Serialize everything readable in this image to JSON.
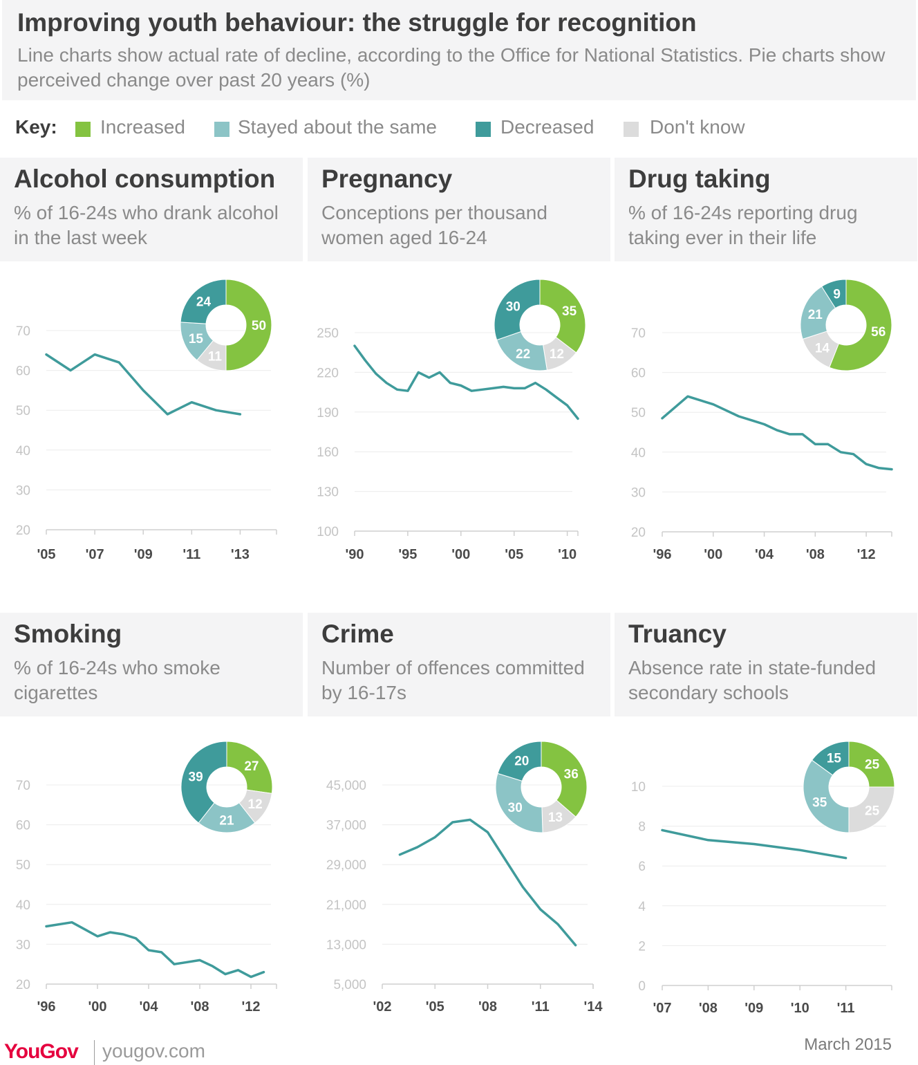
{
  "header": {
    "title": "Improving youth behaviour: the struggle for recognition",
    "subtitle": "Line charts show actual rate of decline, according to the Office for National Statistics. Pie charts show perceived change over past 20 years (%)"
  },
  "key": {
    "label": "Key:",
    "items": [
      {
        "label": "Increased",
        "color": "#84c341"
      },
      {
        "label": "Stayed about the same",
        "color": "#8cc4c6"
      },
      {
        "label": "Decreased",
        "color": "#3f9b9b"
      },
      {
        "label": "Don't know",
        "color": "#dcdcdc"
      }
    ]
  },
  "colors": {
    "line": "#3f9b9b",
    "axis": "#cfcfcf",
    "grid": "#ececec"
  },
  "footer": {
    "logo": "YouGov",
    "url": "yougov.com",
    "date": "March 2015"
  },
  "chart_data": [
    {
      "type": "line",
      "title": "Alcohol consumption",
      "subtitle": "% of 16-24s who drank alcohol in the last week",
      "yticks": [
        "20",
        "30",
        "40",
        "50",
        "60",
        "70"
      ],
      "ylim": [
        20,
        70
      ],
      "xlim": [
        2005,
        2014.5
      ],
      "xtick_values": [
        2005,
        2007,
        2009,
        2011,
        2013
      ],
      "xtick_labels": [
        "'05",
        "'07",
        "'09",
        "'11",
        "'13"
      ],
      "x": [
        2005,
        2006,
        2007,
        2008,
        2009,
        2010,
        2011,
        2012,
        2013
      ],
      "y": [
        64,
        60,
        64,
        62,
        55,
        49,
        52,
        50,
        49
      ],
      "perception": {
        "labels": [
          "50",
          "11",
          "15",
          "24"
        ],
        "values": [
          50,
          11,
          15,
          24
        ],
        "colors": [
          "#84c341",
          "#dcdcdc",
          "#8cc4c6",
          "#3f9b9b"
        ]
      }
    },
    {
      "type": "line",
      "title": "Pregnancy",
      "subtitle": "Conceptions per thousand women aged 16-24",
      "yticks": [
        "100",
        "130",
        "160",
        "190",
        "220",
        "250"
      ],
      "ylim": [
        100,
        250
      ],
      "xlim": [
        1990,
        2011
      ],
      "xtick_values": [
        1990,
        1995,
        2000,
        2005,
        2010
      ],
      "xtick_labels": [
        "'90",
        "'95",
        "'00",
        "'05",
        "'10"
      ],
      "x": [
        1990,
        1991,
        1992,
        1993,
        1994,
        1995,
        1996,
        1997,
        1998,
        1999,
        2000,
        2001,
        2002,
        2003,
        2004,
        2005,
        2006,
        2007,
        2008,
        2009,
        2010,
        2011
      ],
      "y": [
        240,
        229,
        219,
        212,
        207,
        206,
        220,
        216,
        220,
        212,
        210,
        206,
        207,
        208,
        209,
        208,
        208,
        212,
        207,
        201,
        195,
        185
      ],
      "perception": {
        "labels": [
          "35",
          "12",
          "22",
          "30"
        ],
        "values": [
          35,
          12,
          22,
          30
        ],
        "colors": [
          "#84c341",
          "#dcdcdc",
          "#8cc4c6",
          "#3f9b9b"
        ]
      }
    },
    {
      "type": "line",
      "title": "Drug taking",
      "subtitle": "% of 16-24s reporting drug taking ever in their life",
      "yticks": [
        "20",
        "30",
        "40",
        "50",
        "60",
        "70"
      ],
      "ylim": [
        20,
        70
      ],
      "xlim": [
        1996,
        2014
      ],
      "xtick_values": [
        1996,
        2000,
        2004,
        2008,
        2012
      ],
      "xtick_labels": [
        "'96",
        "'00",
        "'04",
        "'08",
        "'12"
      ],
      "x": [
        1996,
        1998,
        2000,
        2001,
        2002,
        2003,
        2004,
        2005,
        2006,
        2007,
        2008,
        2009,
        2010,
        2011,
        2012,
        2013,
        2014
      ],
      "y": [
        48.5,
        54,
        52,
        50.5,
        49,
        48,
        47,
        45.5,
        44.5,
        44.5,
        42,
        42,
        40,
        39.5,
        37,
        36,
        35.7
      ],
      "perception": {
        "labels": [
          "56",
          "14",
          "21",
          "9"
        ],
        "values": [
          56,
          14,
          21,
          9
        ],
        "colors": [
          "#84c341",
          "#dcdcdc",
          "#8cc4c6",
          "#3f9b9b"
        ]
      }
    },
    {
      "type": "line",
      "title": "Smoking",
      "subtitle": "% of 16-24s who smoke cigarettes",
      "yticks": [
        "20",
        "30",
        "40",
        "50",
        "60",
        "70"
      ],
      "ylim": [
        20,
        70
      ],
      "xlim": [
        1996,
        2014
      ],
      "xtick_values": [
        1996,
        2000,
        2004,
        2008,
        2012
      ],
      "xtick_labels": [
        "'96",
        "'00",
        "'04",
        "'08",
        "'12"
      ],
      "x": [
        1996,
        1998,
        2000,
        2001,
        2002,
        2003,
        2004,
        2005,
        2006,
        2007,
        2008,
        2009,
        2010,
        2011,
        2012,
        2013
      ],
      "y": [
        34.5,
        35.5,
        32,
        33,
        32.5,
        31.5,
        28.5,
        28,
        25,
        25.5,
        26,
        24.5,
        22.5,
        23.5,
        21.8,
        23
      ],
      "perception": {
        "labels": [
          "27",
          "12",
          "21",
          "39"
        ],
        "values": [
          27,
          12,
          21,
          39
        ],
        "colors": [
          "#84c341",
          "#dcdcdc",
          "#8cc4c6",
          "#3f9b9b"
        ]
      }
    },
    {
      "type": "line",
      "title": "Crime",
      "subtitle": "Number of offences committed by 16-17s",
      "yticks": [
        "5,000",
        "13,000",
        "21,000",
        "29,000",
        "37,000",
        "45,000"
      ],
      "ylim": [
        5000,
        45000
      ],
      "xlim": [
        2002,
        2014
      ],
      "xtick_values": [
        2002,
        2005,
        2008,
        2011,
        2014
      ],
      "xtick_labels": [
        "'02",
        "'05",
        "'08",
        "'11",
        "'14"
      ],
      "x": [
        2003,
        2004,
        2005,
        2006,
        2007,
        2008,
        2009,
        2010,
        2011,
        2012,
        2013
      ],
      "y": [
        31000,
        32500,
        34500,
        37500,
        38000,
        35500,
        30000,
        24500,
        20000,
        17000,
        12800
      ],
      "perception": {
        "labels": [
          "36",
          "13",
          "30",
          "20"
        ],
        "values": [
          36,
          13,
          30,
          20
        ],
        "colors": [
          "#84c341",
          "#dcdcdc",
          "#8cc4c6",
          "#3f9b9b"
        ]
      }
    },
    {
      "type": "line",
      "title": "Truancy",
      "subtitle": "Absence rate in state-funded secondary schools",
      "yticks": [
        "0",
        "2",
        "4",
        "6",
        "8",
        "10"
      ],
      "ylim": [
        0,
        10
      ],
      "xlim": [
        2007,
        2012
      ],
      "xtick_values": [
        2007,
        2008,
        2009,
        2010,
        2011
      ],
      "xtick_labels": [
        "'07",
        "'08",
        "'09",
        "'10",
        "'11"
      ],
      "x": [
        2007,
        2008,
        2009,
        2010,
        2011
      ],
      "y": [
        7.8,
        7.3,
        7.1,
        6.8,
        6.4
      ],
      "perception": {
        "labels": [
          "25",
          "25",
          "35",
          "15"
        ],
        "values": [
          25,
          25,
          35,
          15
        ],
        "colors": [
          "#84c341",
          "#dcdcdc",
          "#8cc4c6",
          "#3f9b9b"
        ]
      }
    }
  ]
}
